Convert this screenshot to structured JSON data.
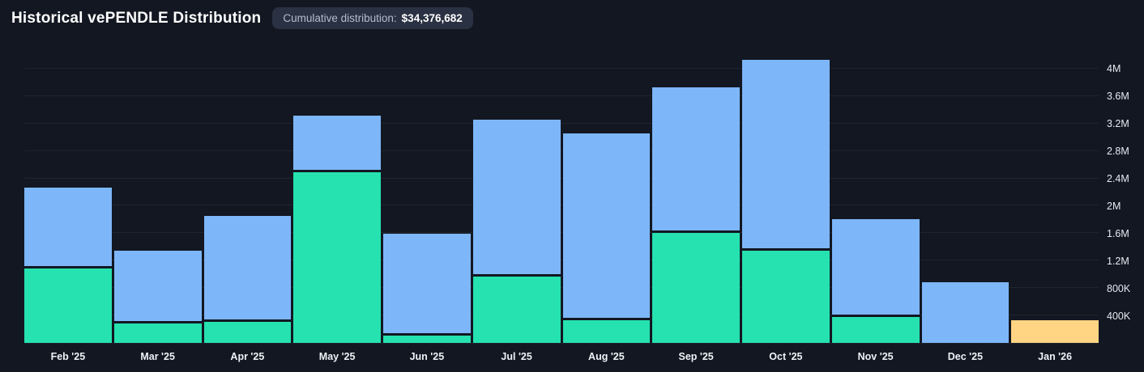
{
  "header": {
    "title": "Historical vePENDLE Distribution",
    "badge_label": "Cumulative distribution:",
    "badge_value": "$34,376,682"
  },
  "colors": {
    "background": "#131722",
    "badge_bg": "#2a3142",
    "green": "#25e2b0",
    "blue": "#7db7fa",
    "yellow": "#ffd583",
    "gridline": "rgba(255,255,255,0.06)"
  },
  "chart_data": {
    "type": "bar",
    "stacked": true,
    "title": "Historical vePENDLE Distribution",
    "xlabel": "",
    "ylabel": "",
    "grid": true,
    "legend": "none",
    "y_axis_side": "right",
    "ylim": [
      0,
      4235000
    ],
    "y_ticks": [
      "400K",
      "800K",
      "1.2M",
      "1.6M",
      "2M",
      "2.4M",
      "2.8M",
      "3.2M",
      "3.6M",
      "4M"
    ],
    "y_tick_values": [
      400000,
      800000,
      1200000,
      1600000,
      2000000,
      2400000,
      2800000,
      3200000,
      3600000,
      4000000
    ],
    "categories": [
      "Feb '25",
      "Mar '25",
      "Apr '25",
      "May '25",
      "Jun '25",
      "Jul '25",
      "Aug '25",
      "Sep '25",
      "Oct '25",
      "Nov '25",
      "Dec '25",
      "Jan '26"
    ],
    "series": [
      {
        "name": "green-series",
        "color": "#25e2b0",
        "values": [
          1080000,
          280000,
          310000,
          2490000,
          110000,
          970000,
          330000,
          1610000,
          1350000,
          380000,
          0,
          0
        ]
      },
      {
        "name": "blue-series",
        "color": "#7db7fa",
        "values": [
          1190000,
          1070000,
          1540000,
          830000,
          1480000,
          2290000,
          2720000,
          2120000,
          2780000,
          1430000,
          880000,
          0
        ]
      },
      {
        "name": "yellow-series",
        "color": "#ffd583",
        "values": [
          0,
          0,
          0,
          0,
          0,
          0,
          0,
          0,
          0,
          0,
          0,
          330000
        ]
      }
    ],
    "totals": [
      2270000,
      1350000,
      1850000,
      3320000,
      1590000,
      3260000,
      3050000,
      3730000,
      4130000,
      1810000,
      880000,
      330000
    ]
  }
}
